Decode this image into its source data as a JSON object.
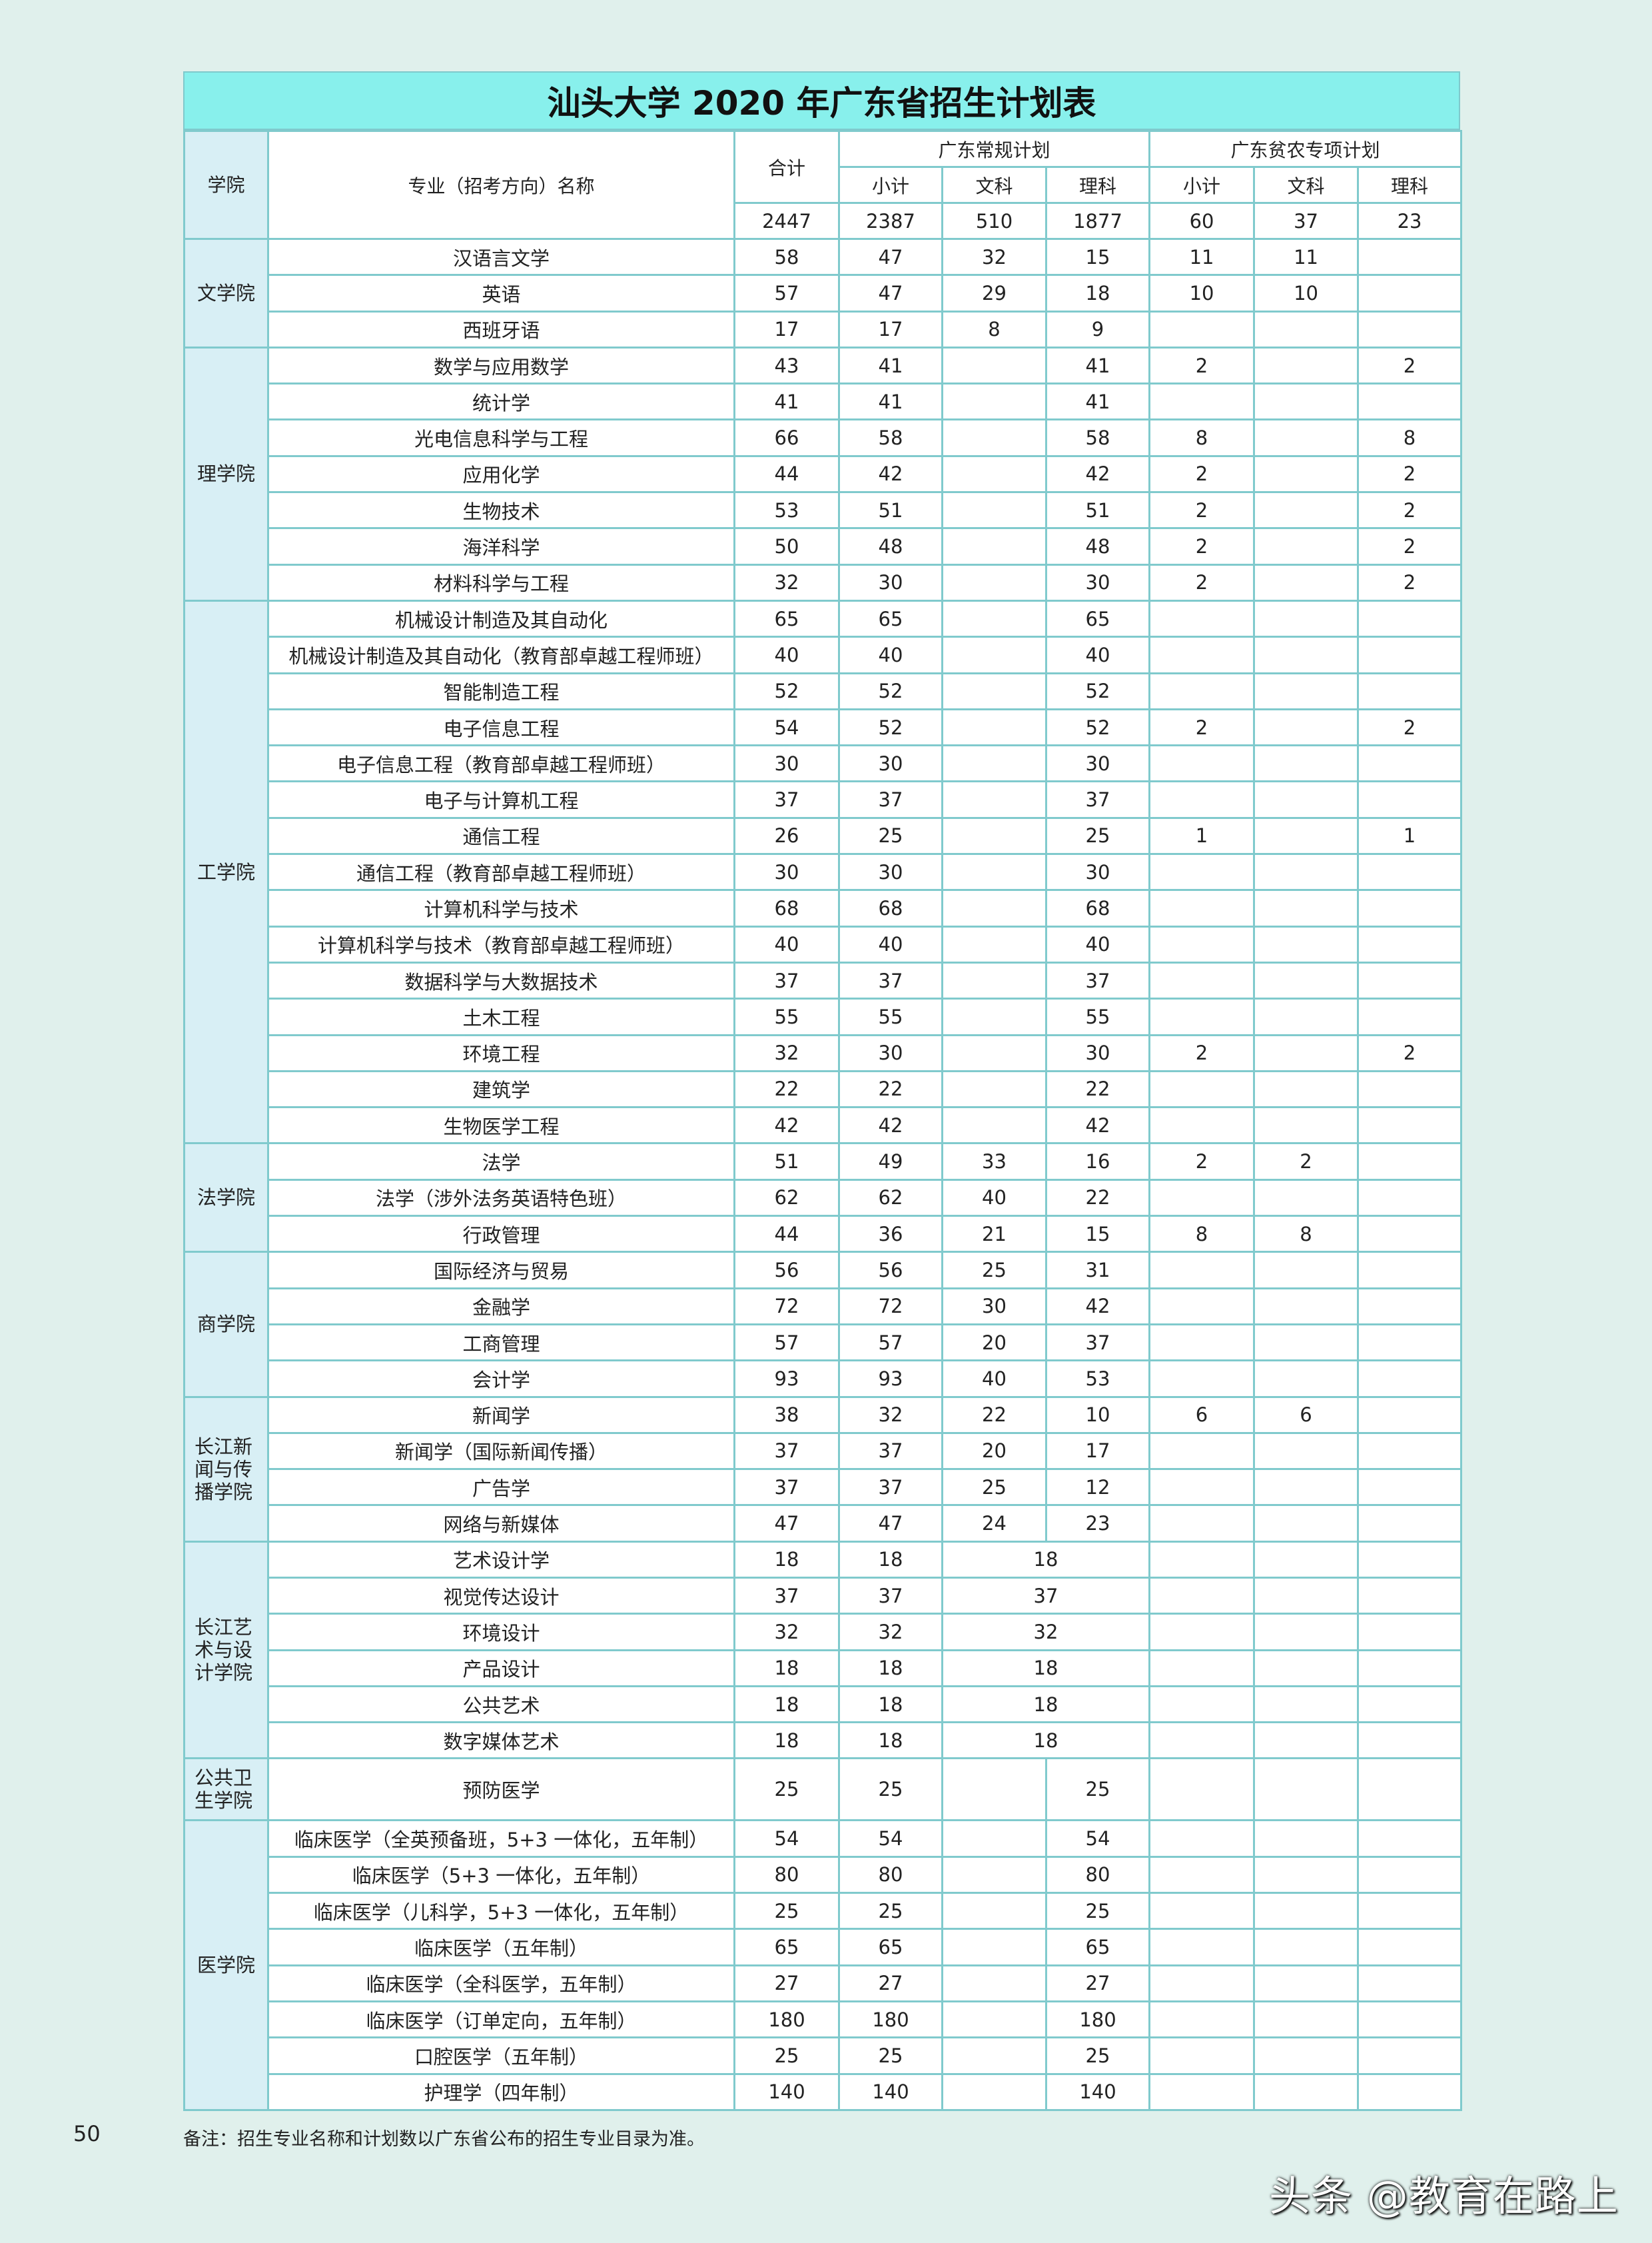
{
  "title": "汕头大学 2020 年广东省招生计划表",
  "header": {
    "college": "学院",
    "major": "专业（招考方向）名称",
    "total": "合计",
    "regular_plan": "广东常规计划",
    "poverty_plan": "广东贫农专项计划",
    "subtotal": "小计",
    "wen": "文科",
    "li": "理科",
    "totals": [
      "2447",
      "2387",
      "510",
      "1877",
      "60",
      "37",
      "23"
    ]
  },
  "colleges": [
    {
      "name": "文学院",
      "rows": [
        [
          "汉语言文学",
          "58",
          "47",
          "32",
          "15",
          "11",
          "11",
          ""
        ],
        [
          "英语",
          "57",
          "47",
          "29",
          "18",
          "10",
          "10",
          ""
        ],
        [
          "西班牙语",
          "17",
          "17",
          "8",
          "9",
          "",
          "",
          ""
        ]
      ]
    },
    {
      "name": "理学院",
      "rows": [
        [
          "数学与应用数学",
          "43",
          "41",
          "",
          "41",
          "2",
          "",
          "2"
        ],
        [
          "统计学",
          "41",
          "41",
          "",
          "41",
          "",
          "",
          ""
        ],
        [
          "光电信息科学与工程",
          "66",
          "58",
          "",
          "58",
          "8",
          "",
          "8"
        ],
        [
          "应用化学",
          "44",
          "42",
          "",
          "42",
          "2",
          "",
          "2"
        ],
        [
          "生物技术",
          "53",
          "51",
          "",
          "51",
          "2",
          "",
          "2"
        ],
        [
          "海洋科学",
          "50",
          "48",
          "",
          "48",
          "2",
          "",
          "2"
        ],
        [
          "材料科学与工程",
          "32",
          "30",
          "",
          "30",
          "2",
          "",
          "2"
        ]
      ]
    },
    {
      "name": "工学院",
      "rows": [
        [
          "机械设计制造及其自动化",
          "65",
          "65",
          "",
          "65",
          "",
          "",
          ""
        ],
        [
          "机械设计制造及其自动化（教育部卓越工程师班）",
          "40",
          "40",
          "",
          "40",
          "",
          "",
          ""
        ],
        [
          "智能制造工程",
          "52",
          "52",
          "",
          "52",
          "",
          "",
          ""
        ],
        [
          "电子信息工程",
          "54",
          "52",
          "",
          "52",
          "2",
          "",
          "2"
        ],
        [
          "电子信息工程（教育部卓越工程师班）",
          "30",
          "30",
          "",
          "30",
          "",
          "",
          ""
        ],
        [
          "电子与计算机工程",
          "37",
          "37",
          "",
          "37",
          "",
          "",
          ""
        ],
        [
          "通信工程",
          "26",
          "25",
          "",
          "25",
          "1",
          "",
          "1"
        ],
        [
          "通信工程（教育部卓越工程师班）",
          "30",
          "30",
          "",
          "30",
          "",
          "",
          ""
        ],
        [
          "计算机科学与技术",
          "68",
          "68",
          "",
          "68",
          "",
          "",
          ""
        ],
        [
          "计算机科学与技术（教育部卓越工程师班）",
          "40",
          "40",
          "",
          "40",
          "",
          "",
          ""
        ],
        [
          "数据科学与大数据技术",
          "37",
          "37",
          "",
          "37",
          "",
          "",
          ""
        ],
        [
          "土木工程",
          "55",
          "55",
          "",
          "55",
          "",
          "",
          ""
        ],
        [
          "环境工程",
          "32",
          "30",
          "",
          "30",
          "2",
          "",
          "2"
        ],
        [
          "建筑学",
          "22",
          "22",
          "",
          "22",
          "",
          "",
          ""
        ],
        [
          "生物医学工程",
          "42",
          "42",
          "",
          "42",
          "",
          "",
          ""
        ]
      ]
    },
    {
      "name": "法学院",
      "rows": [
        [
          "法学",
          "51",
          "49",
          "33",
          "16",
          "2",
          "2",
          ""
        ],
        [
          "法学（涉外法务英语特色班）",
          "62",
          "62",
          "40",
          "22",
          "",
          "",
          ""
        ],
        [
          "行政管理",
          "44",
          "36",
          "21",
          "15",
          "8",
          "8",
          ""
        ]
      ]
    },
    {
      "name": "商学院",
      "rows": [
        [
          "国际经济与贸易",
          "56",
          "56",
          "25",
          "31",
          "",
          "",
          ""
        ],
        [
          "金融学",
          "72",
          "72",
          "30",
          "42",
          "",
          "",
          ""
        ],
        [
          "工商管理",
          "57",
          "57",
          "20",
          "37",
          "",
          "",
          ""
        ],
        [
          "会计学",
          "93",
          "93",
          "40",
          "53",
          "",
          "",
          ""
        ]
      ]
    },
    {
      "name": "长江新闻与传播学院",
      "rows": [
        [
          "新闻学",
          "38",
          "32",
          "22",
          "10",
          "6",
          "6",
          ""
        ],
        [
          "新闻学（国际新闻传播）",
          "37",
          "37",
          "20",
          "17",
          "",
          "",
          ""
        ],
        [
          "广告学",
          "37",
          "37",
          "25",
          "12",
          "",
          "",
          ""
        ],
        [
          "网络与新媒体",
          "47",
          "47",
          "24",
          "23",
          "",
          "",
          ""
        ]
      ]
    },
    {
      "name": "长江艺术与设计学院",
      "merged": true,
      "rows": [
        [
          "艺术设计学",
          "18",
          "18",
          "18",
          "",
          "",
          ""
        ],
        [
          "视觉传达设计",
          "37",
          "37",
          "37",
          "",
          "",
          ""
        ],
        [
          "环境设计",
          "32",
          "32",
          "32",
          "",
          "",
          ""
        ],
        [
          "产品设计",
          "18",
          "18",
          "18",
          "",
          "",
          ""
        ],
        [
          "公共艺术",
          "18",
          "18",
          "18",
          "",
          "",
          ""
        ],
        [
          "数字媒体艺术",
          "18",
          "18",
          "18",
          "",
          "",
          ""
        ]
      ]
    },
    {
      "name": "公共卫生学院",
      "tall": true,
      "rows": [
        [
          "预防医学",
          "25",
          "25",
          "",
          "25",
          "",
          "",
          ""
        ]
      ]
    },
    {
      "name": "医学院",
      "rows": [
        [
          "临床医学（全英预备班，5+3 一体化，五年制）",
          "54",
          "54",
          "",
          "54",
          "",
          "",
          ""
        ],
        [
          "临床医学（5+3 一体化，五年制）",
          "80",
          "80",
          "",
          "80",
          "",
          "",
          ""
        ],
        [
          "临床医学（儿科学，5+3 一体化，五年制）",
          "25",
          "25",
          "",
          "25",
          "",
          "",
          ""
        ],
        [
          "临床医学（五年制）",
          "65",
          "65",
          "",
          "65",
          "",
          "",
          ""
        ],
        [
          "临床医学（全科医学，五年制）",
          "27",
          "27",
          "",
          "27",
          "",
          "",
          ""
        ],
        [
          "临床医学（订单定向，五年制）",
          "180",
          "180",
          "",
          "180",
          "",
          "",
          ""
        ],
        [
          "口腔医学（五年制）",
          "25",
          "25",
          "",
          "25",
          "",
          "",
          ""
        ],
        [
          "护理学（四年制）",
          "140",
          "140",
          "",
          "140",
          "",
          "",
          ""
        ]
      ]
    }
  ],
  "page_number": "50",
  "note": "备注：招生专业名称和计划数以广东省公布的招生专业目录为准。",
  "watermark": "头条 @教育在路上",
  "colors": {
    "title_band": "#88f0ec",
    "college_cell": "#d8eff5",
    "border": "#80cacd",
    "page_bg": "#e0f0ec"
  }
}
